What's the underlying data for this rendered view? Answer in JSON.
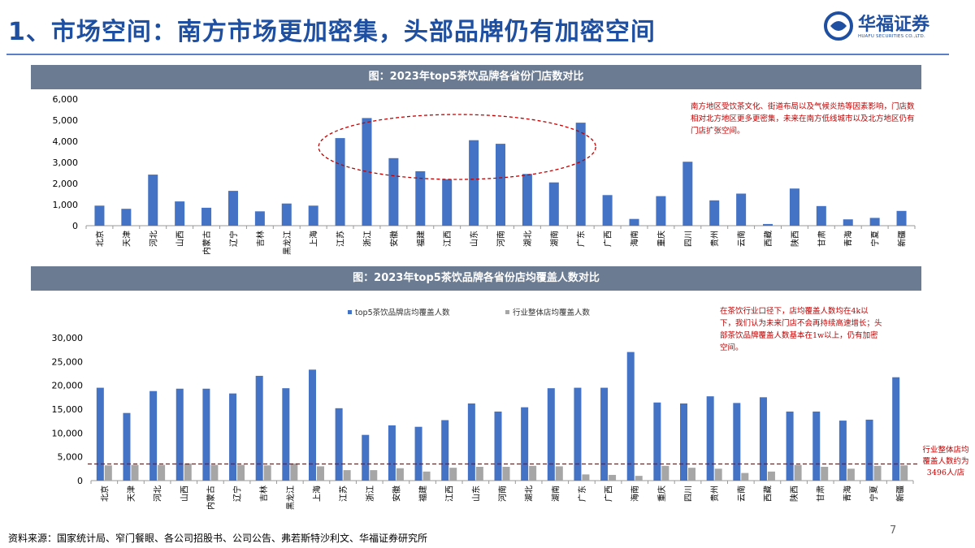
{
  "title": "1、市场空间：南方市场更加密集，头部品牌仍有加密空间",
  "logo": {
    "name_cn": "华福证券",
    "name_en": "HUAFU SECURITIES CO.,LTD."
  },
  "colors": {
    "title": "#1f4fa0",
    "bar_blue": "#4472c4",
    "bar_gray": "#a6a6a6",
    "banner": "#6b7b92",
    "note_red": "#c00000"
  },
  "provinces": [
    "北京",
    "天津",
    "河北",
    "山西",
    "内蒙古",
    "辽宁",
    "吉林",
    "黑龙江",
    "上海",
    "江苏",
    "浙江",
    "安徽",
    "福建",
    "江西",
    "山东",
    "河南",
    "湖北",
    "湖南",
    "广东",
    "广西",
    "海南",
    "重庆",
    "四川",
    "贵州",
    "云南",
    "西藏",
    "陕西",
    "甘肃",
    "青海",
    "宁夏",
    "新疆"
  ],
  "chart_data": [
    {
      "type": "bar",
      "title": "图：2023年top5茶饮品牌各省份门店数对比",
      "values": [
        950,
        800,
        2420,
        1150,
        850,
        1650,
        680,
        1050,
        950,
        4150,
        5100,
        3200,
        2580,
        2200,
        4050,
        3880,
        2450,
        2050,
        4880,
        1450,
        320,
        1400,
        3030,
        1200,
        1520,
        80,
        1760,
        930,
        300,
        370,
        700
      ],
      "ylim": [
        0,
        6000
      ],
      "yticks": [
        "0",
        "1,000",
        "2,000",
        "3,000",
        "4,000",
        "5,000",
        "6,000"
      ],
      "annotation": "南方地区受饮茶文化、街道布局以及气候炎热等因素影响，门店数相对北方地区更多更密集，未来在南方低线城市以及北方地区仍有门店扩张空间。"
    },
    {
      "type": "bar",
      "title": "图：2023年top5茶饮品牌各省份店均覆盖人数对比",
      "series": [
        {
          "name": "top5茶饮品牌店均覆盖人数",
          "values": [
            19500,
            14200,
            18800,
            19300,
            19300,
            18300,
            22000,
            19400,
            23300,
            15200,
            9600,
            11600,
            11300,
            12700,
            16200,
            14500,
            15400,
            19400,
            19500,
            19500,
            27000,
            16400,
            16200,
            17700,
            16300,
            17500,
            14500,
            14500,
            12600,
            12800,
            21700
          ]
        },
        {
          "name": "行业整体店均覆盖人数",
          "values": [
            3200,
            3300,
            3300,
            3600,
            3300,
            3300,
            3200,
            3600,
            3000,
            2200,
            2200,
            2600,
            1900,
            2700,
            2900,
            2900,
            3100,
            3000,
            1300,
            1200,
            1000,
            3100,
            2700,
            2500,
            1600,
            1900,
            3300,
            2900,
            2500,
            3100,
            3200
          ]
        }
      ],
      "ylim": [
        0,
        30000
      ],
      "yticks": [
        "0",
        "5,000",
        "10,000",
        "15,000",
        "20,000",
        "25,000",
        "30,000"
      ],
      "reference_line": 3496,
      "annotation": "在茶饮行业口径下，店均覆盖人数均在4k以下，我们认为未来门店不会再持续高速增长；头部茶饮品牌覆盖人数基本在1w以上，仍有加密空间。",
      "reference_note": "行业整体店均覆盖人数约为3496人/店"
    }
  ],
  "source": "资料来源：国家统计局、窄门餐眼、各公司招股书、公司公告、弗若斯特沙利文、华福证券研究所",
  "page_number": "7"
}
